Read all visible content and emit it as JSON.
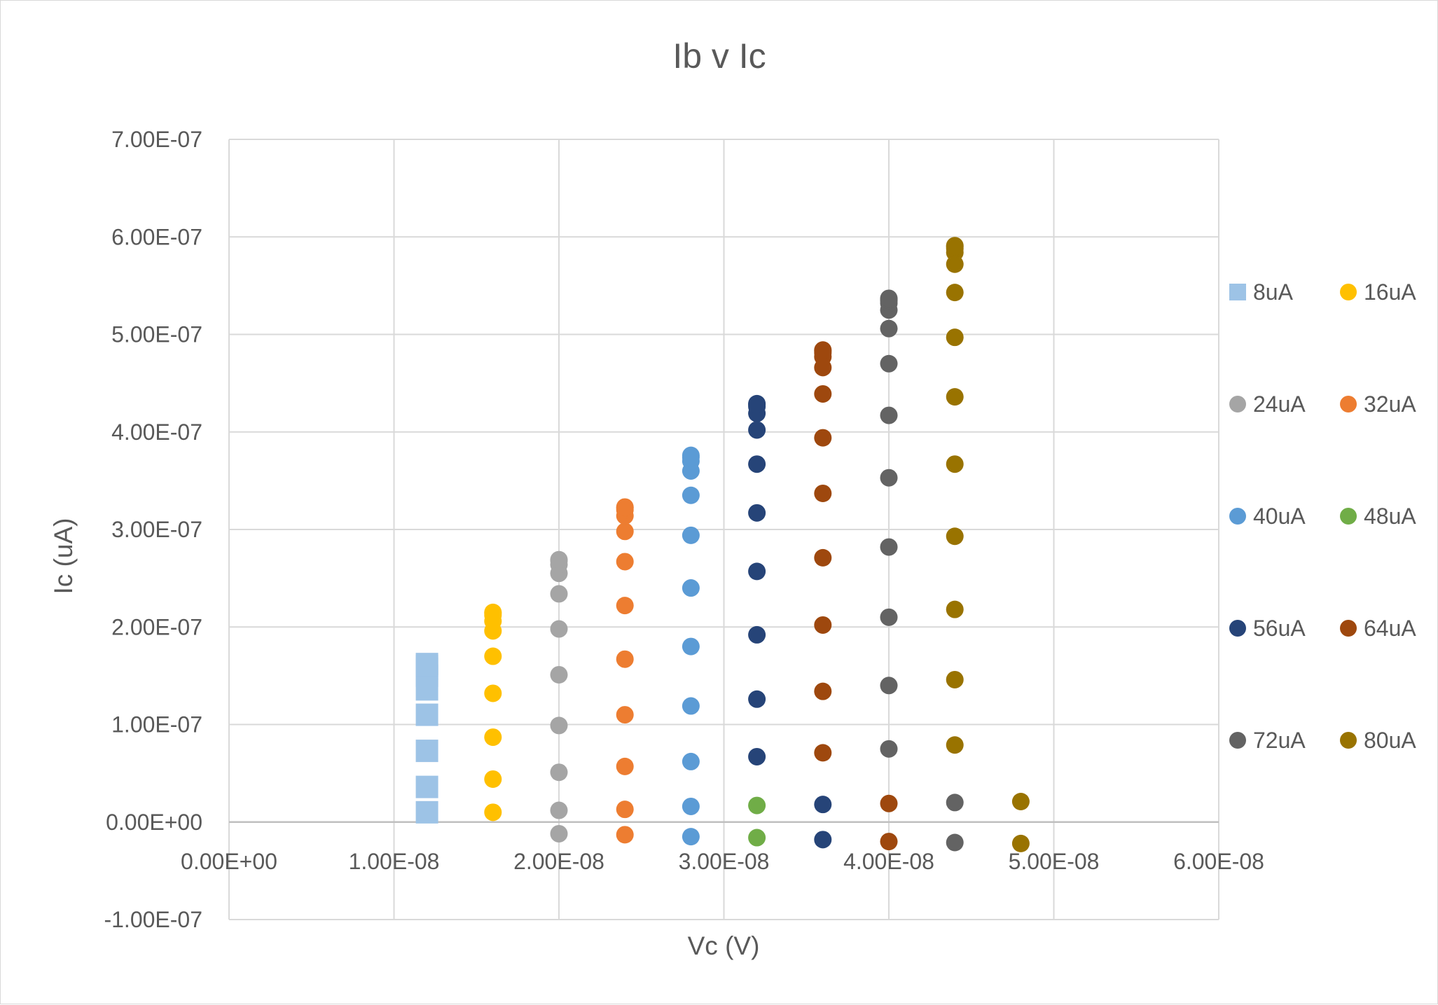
{
  "chart_data": {
    "type": "scatter",
    "title": "Ib v Ic",
    "xlabel": "Vc (V)",
    "ylabel": "Ic (uA)",
    "xlim": [
      0,
      6e-08
    ],
    "ylim": [
      -1e-07,
      7e-07
    ],
    "x_ticks": [
      "0.00E+00",
      "1.00E-08",
      "2.00E-08",
      "3.00E-08",
      "4.00E-08",
      "5.00E-08",
      "6.00E-08"
    ],
    "y_ticks": [
      "-1.00E-07",
      "0.00E+00",
      "1.00E-07",
      "2.00E-07",
      "3.00E-07",
      "4.00E-07",
      "5.00E-07",
      "6.00E-07",
      "7.00E-07"
    ],
    "grid": true,
    "legend_position": "right",
    "series": [
      {
        "name": "8uA",
        "color": "#9dc3e6",
        "marker": "square",
        "x": [
          1.2e-08,
          1.2e-08,
          1.2e-08,
          1.2e-08,
          1.2e-08,
          1.2e-08,
          1.2e-08,
          1.2e-08,
          1.2e-08
        ],
        "y": [
          1e-08,
          3.6e-08,
          7.3e-08,
          1.1e-07,
          1.36e-07,
          1.5e-07,
          1.57e-07,
          1.6e-07,
          1.62e-07
        ]
      },
      {
        "name": "16uA",
        "color": "#ffc000",
        "marker": "circle",
        "x": [
          1.6e-08,
          1.6e-08,
          1.6e-08,
          1.6e-08,
          1.6e-08,
          1.6e-08,
          1.6e-08,
          1.6e-08,
          1.6e-08,
          1.6e-08
        ],
        "y": [
          1e-08,
          4.4e-08,
          8.7e-08,
          1.32e-07,
          1.7e-07,
          1.96e-07,
          2.06e-07,
          2.12e-07,
          2.14e-07,
          2.15e-07
        ]
      },
      {
        "name": "24uA",
        "color": "#a5a5a5",
        "marker": "circle",
        "x": [
          2e-08,
          2e-08,
          2e-08,
          2e-08,
          2e-08,
          2e-08,
          2e-08,
          2e-08,
          2e-08,
          2e-08,
          2e-08
        ],
        "y": [
          -1.2e-08,
          1.2e-08,
          5.1e-08,
          9.9e-08,
          1.51e-07,
          1.98e-07,
          2.34e-07,
          2.55e-07,
          2.64e-07,
          2.68e-07,
          2.69e-07
        ]
      },
      {
        "name": "32uA",
        "color": "#ed7d31",
        "marker": "circle",
        "x": [
          2.4e-08,
          2.4e-08,
          2.4e-08,
          2.4e-08,
          2.4e-08,
          2.4e-08,
          2.4e-08,
          2.4e-08,
          2.4e-08,
          2.4e-08,
          2.4e-08,
          2.4e-08
        ],
        "y": [
          -1.3e-08,
          1.3e-08,
          5.7e-08,
          1.1e-07,
          1.67e-07,
          2.22e-07,
          2.67e-07,
          2.98e-07,
          3.14e-07,
          3.2e-07,
          3.22e-07,
          3.23e-07
        ]
      },
      {
        "name": "40uA",
        "color": "#5b9bd5",
        "marker": "circle",
        "x": [
          2.8e-08,
          2.8e-08,
          2.8e-08,
          2.8e-08,
          2.8e-08,
          2.8e-08,
          2.8e-08,
          2.8e-08,
          2.8e-08,
          2.8e-08,
          2.8e-08,
          2.8e-08
        ],
        "y": [
          -1.5e-08,
          1.6e-08,
          6.2e-08,
          1.19e-07,
          1.8e-07,
          2.4e-07,
          2.94e-07,
          3.35e-07,
          3.6e-07,
          3.7e-07,
          3.74e-07,
          3.76e-07
        ]
      },
      {
        "name": "48uA",
        "color": "#70ad47",
        "marker": "circle",
        "x": [
          3.2e-08,
          3.2e-08
        ],
        "y": [
          -1.6e-08,
          1.7e-08
        ]
      },
      {
        "name": "56uA",
        "color": "#264478",
        "marker": "circle",
        "x": [
          3.2e-08,
          3.2e-08,
          3.2e-08,
          3.2e-08,
          3.2e-08,
          3.2e-08,
          3.2e-08,
          3.2e-08,
          3.2e-08,
          3.2e-08,
          3.2e-08,
          3.6e-08,
          3.6e-08
        ],
        "y": [
          6.7e-08,
          1.26e-07,
          1.92e-07,
          2.57e-07,
          3.17e-07,
          3.67e-07,
          4.02e-07,
          4.19e-07,
          4.26e-07,
          4.28e-07,
          4.29e-07,
          -1.8e-08,
          1.8e-08
        ]
      },
      {
        "name": "64uA",
        "color": "#9e480e",
        "marker": "circle",
        "x": [
          3.6e-08,
          3.6e-08,
          3.6e-08,
          3.6e-08,
          3.6e-08,
          3.6e-08,
          3.6e-08,
          3.6e-08,
          3.6e-08,
          3.6e-08,
          3.6e-08,
          3.6e-08,
          4e-08,
          4e-08
        ],
        "y": [
          7.1e-08,
          1.34e-07,
          2.02e-07,
          2.71e-07,
          3.37e-07,
          3.94e-07,
          4.39e-07,
          4.66e-07,
          4.77e-07,
          4.81e-07,
          4.83e-07,
          4.84e-07,
          -2e-08,
          1.9e-08
        ]
      },
      {
        "name": "72uA",
        "color": "#636363",
        "marker": "circle",
        "x": [
          4e-08,
          4e-08,
          4e-08,
          4e-08,
          4e-08,
          4e-08,
          4e-08,
          4e-08,
          4e-08,
          4e-08,
          4e-08,
          4e-08,
          4e-08,
          4.4e-08,
          4.4e-08
        ],
        "y": [
          7.5e-08,
          1.4e-07,
          2.1e-07,
          2.82e-07,
          3.53e-07,
          4.17e-07,
          4.7e-07,
          5.06e-07,
          5.25e-07,
          5.32e-07,
          5.35e-07,
          5.36e-07,
          5.37e-07,
          -2.1e-08,
          2e-08
        ]
      },
      {
        "name": "80uA",
        "color": "#997300",
        "marker": "circle",
        "x": [
          4.4e-08,
          4.4e-08,
          4.4e-08,
          4.4e-08,
          4.4e-08,
          4.4e-08,
          4.4e-08,
          4.4e-08,
          4.4e-08,
          4.4e-08,
          4.4e-08,
          4.4e-08,
          4.4e-08,
          4.8e-08,
          4.8e-08
        ],
        "y": [
          7.9e-08,
          1.46e-07,
          2.18e-07,
          2.93e-07,
          3.67e-07,
          4.36e-07,
          4.97e-07,
          5.43e-07,
          5.72e-07,
          5.84e-07,
          5.88e-07,
          5.9e-07,
          5.91e-07,
          -2.2e-08,
          2.1e-08
        ]
      }
    ]
  }
}
